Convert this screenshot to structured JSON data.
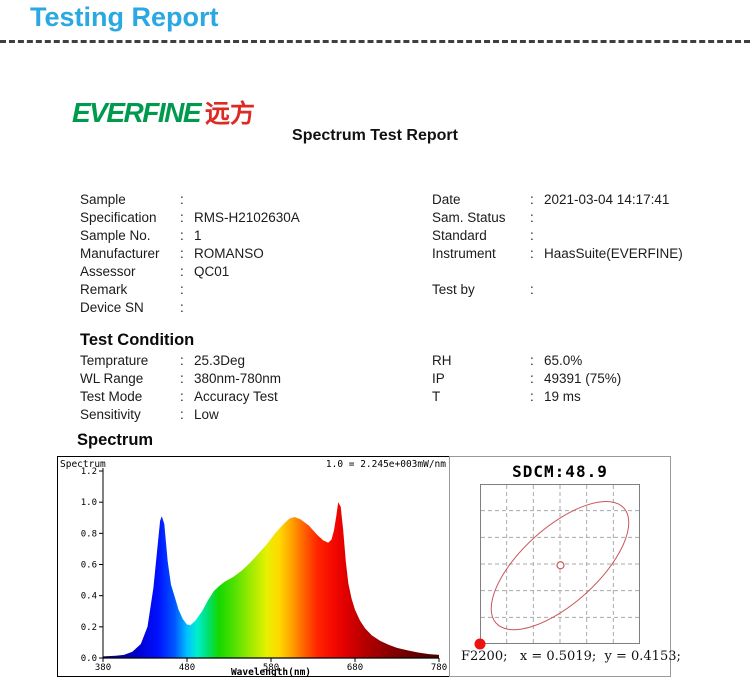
{
  "header": {
    "title": "Testing Report"
  },
  "colors": {
    "accent": "#29a8e1",
    "dash_line": "#3f3f3f",
    "logo_green": "#009a4e",
    "logo_red": "#dd2a22",
    "ellipse": "#c9595c",
    "corner_dot": "#ee1111",
    "grid": "#aaaaaa",
    "plot_border": "#808080"
  },
  "report": {
    "logo": {
      "brand": "EVERFINE",
      "cjk": "远方"
    },
    "title": "Spectrum Test Report",
    "info_left": [
      {
        "label": "Sample",
        "value": ""
      },
      {
        "label": "Specification",
        "value": "RMS-H2102630A"
      },
      {
        "label": "Sample No.",
        "value": "1"
      },
      {
        "label": "Manufacturer",
        "value": "ROMANSO"
      },
      {
        "label": "Assessor",
        "value": "QC01"
      },
      {
        "label": "Remark",
        "value": ""
      },
      {
        "label": "Device SN",
        "value": ""
      }
    ],
    "info_right": [
      {
        "label": "Date",
        "value": "2021-03-04 14:17:41"
      },
      {
        "label": "Sam. Status",
        "value": ""
      },
      {
        "label": "Standard",
        "value": ""
      },
      {
        "label": "Instrument",
        "value": "HaasSuite(EVERFINE)"
      },
      {
        "spacer": true
      },
      {
        "label": "Test by",
        "value": ""
      }
    ],
    "test_condition": {
      "heading": "Test Condition",
      "left": [
        {
          "label": "Temprature",
          "value": "25.3Deg"
        },
        {
          "label": "WL Range",
          "value": "380nm-780nm"
        },
        {
          "label": "Test Mode",
          "value": "Accuracy Test"
        },
        {
          "label": "Sensitivity",
          "value": "Low"
        }
      ],
      "right": [
        {
          "label": "RH",
          "value": "65.0%"
        },
        {
          "label": "IP",
          "value": "49391 (75%)"
        },
        {
          "label": "T",
          "value": "19 ms"
        }
      ]
    },
    "spectrum_heading": "Spectrum"
  },
  "chart_data": [
    {
      "type": "area",
      "title": "Spectrum",
      "scale_note": "1.0 = 2.245e+003mW/nm",
      "xlabel": "Wavelength(nm)",
      "xlim": [
        380,
        780
      ],
      "ylim": [
        0,
        1.2
      ],
      "x_ticks": [
        380,
        480,
        580,
        680,
        780
      ],
      "y_ticks": [
        0.0,
        0.2,
        0.4,
        0.6,
        0.8,
        1.0,
        1.2
      ],
      "x_nm": [
        380,
        395,
        405,
        415,
        425,
        433,
        440,
        445,
        448,
        450,
        453,
        457,
        461,
        465,
        470,
        475,
        480,
        484,
        490,
        498,
        505,
        512,
        518,
        525,
        535,
        545,
        555,
        565,
        575,
        585,
        595,
        602,
        608,
        615,
        625,
        635,
        642,
        648,
        652,
        655,
        658,
        660,
        663,
        666,
        669,
        672,
        676,
        680,
        686,
        692,
        700,
        710,
        720,
        730,
        742,
        755,
        768,
        780
      ],
      "y_rel": [
        0.01,
        0.015,
        0.02,
        0.04,
        0.09,
        0.2,
        0.45,
        0.72,
        0.88,
        0.91,
        0.86,
        0.62,
        0.47,
        0.4,
        0.31,
        0.25,
        0.215,
        0.21,
        0.24,
        0.3,
        0.37,
        0.43,
        0.46,
        0.49,
        0.52,
        0.56,
        0.61,
        0.67,
        0.73,
        0.8,
        0.86,
        0.895,
        0.905,
        0.89,
        0.85,
        0.79,
        0.755,
        0.74,
        0.76,
        0.82,
        0.92,
        1.0,
        0.97,
        0.82,
        0.62,
        0.48,
        0.38,
        0.31,
        0.24,
        0.19,
        0.145,
        0.11,
        0.085,
        0.065,
        0.05,
        0.035,
        0.025,
        0.02
      ],
      "gradient_stops": [
        [
          380,
          "#10006a"
        ],
        [
          420,
          "#0000cd"
        ],
        [
          445,
          "#0010ff"
        ],
        [
          465,
          "#0055ff"
        ],
        [
          480,
          "#00c0ff"
        ],
        [
          492,
          "#00eed0"
        ],
        [
          505,
          "#00e070"
        ],
        [
          518,
          "#15d800"
        ],
        [
          535,
          "#4ce000"
        ],
        [
          555,
          "#9bea00"
        ],
        [
          575,
          "#e8f000"
        ],
        [
          590,
          "#ffd800"
        ],
        [
          605,
          "#ffa000"
        ],
        [
          620,
          "#ff5f00"
        ],
        [
          635,
          "#ff2600"
        ],
        [
          652,
          "#f70b00"
        ],
        [
          668,
          "#e10000"
        ],
        [
          690,
          "#b80000"
        ],
        [
          720,
          "#8b0000"
        ],
        [
          750,
          "#650000"
        ],
        [
          780,
          "#4a0000"
        ]
      ]
    },
    {
      "type": "scatter",
      "title": "SDCM:48.9",
      "sdcm_value": 48.9,
      "grid": {
        "cols": 6,
        "rows": 6,
        "line_style": "dashed"
      },
      "ellipse": {
        "cx": 0.5,
        "cy": 0.51,
        "rx": 0.5375,
        "ry": 0.2375,
        "rotation_deg": -42
      },
      "center_marker": {
        "x": 0.503,
        "y": 0.508
      },
      "corner_point": {
        "x": 0,
        "y": 1
      },
      "point": {
        "label": "F2200",
        "x": 0.5019,
        "y": 0.4153
      },
      "footer": "F2200;   x = 0.5019;  y = 0.4153;"
    }
  ]
}
